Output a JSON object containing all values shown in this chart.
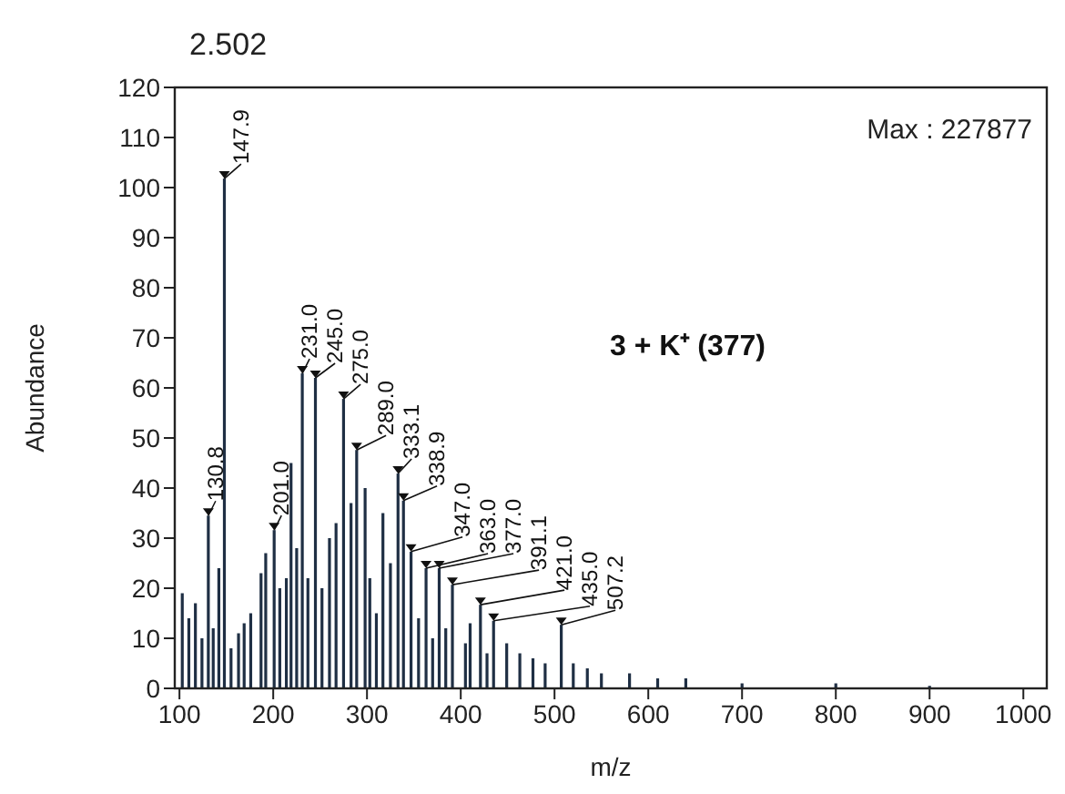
{
  "chart_data": {
    "type": "bar",
    "title": "2.502",
    "xlabel": "m/z",
    "ylabel": "Abundance",
    "annotations": [
      "Max : 227877",
      "3 + K⁺ (377)",
      {
        "text": "130.8",
        "x": 130.8,
        "y": 34.5
      },
      {
        "text": "147.9",
        "x": 147.9,
        "y": 101.8
      },
      {
        "text": "201.0",
        "x": 201.0,
        "y": 31.6
      },
      {
        "text": "231.0",
        "x": 231.0,
        "y": 62.9
      },
      {
        "text": "245.0",
        "x": 245.0,
        "y": 62
      },
      {
        "text": "275.0",
        "x": 275.0,
        "y": 57.8
      },
      {
        "text": "289.0",
        "x": 289.0,
        "y": 47.6
      },
      {
        "text": "333.1",
        "x": 333.1,
        "y": 42.9
      },
      {
        "text": "338.9",
        "x": 338.9,
        "y": 37.5
      },
      {
        "text": "347.0",
        "x": 347.0,
        "y": 27.3
      },
      {
        "text": "363.0",
        "x": 363.0,
        "y": 24
      },
      {
        "text": "377.0",
        "x": 377.0,
        "y": 24
      },
      {
        "text": "391.1",
        "x": 391.1,
        "y": 20.7
      },
      {
        "text": "421.0",
        "x": 421.0,
        "y": 16.7
      },
      {
        "text": "435.0",
        "x": 435.0,
        "y": 13.5
      },
      {
        "text": "507.2",
        "x": 507.2,
        "y": 12.7
      }
    ],
    "x": [
      103,
      110,
      117,
      124,
      130.8,
      136,
      142,
      147.9,
      155,
      163,
      169,
      176,
      187,
      192,
      201.0,
      207,
      214,
      219,
      225,
      231.0,
      237,
      245.0,
      252,
      260,
      267,
      275.0,
      283,
      289.0,
      298,
      303,
      310,
      317,
      325,
      333.1,
      338.9,
      347.0,
      355,
      363.0,
      370,
      377.0,
      384,
      391.1,
      405,
      410,
      421.0,
      428,
      435.0,
      449,
      463,
      477,
      490,
      507.2,
      520,
      535,
      550,
      580,
      610,
      640,
      700,
      800,
      900
    ],
    "values": [
      19,
      14,
      17,
      10,
      34.5,
      12,
      24,
      101.8,
      8,
      11,
      13,
      15,
      23,
      27,
      31.6,
      20,
      22,
      45,
      28,
      62.9,
      22,
      62,
      20,
      30,
      33,
      57.8,
      37,
      47.6,
      40,
      22,
      15,
      35,
      25,
      42.9,
      37.5,
      27.3,
      14,
      24,
      10,
      24,
      12,
      20.7,
      9,
      13,
      16.7,
      7,
      13.5,
      9,
      7,
      6,
      5,
      12.7,
      5,
      4,
      3,
      3,
      2,
      2,
      1,
      1,
      0.5
    ],
    "color": "#1f2f44",
    "xlim": [
      95,
      1025
    ],
    "xticks": [
      100,
      200,
      300,
      400,
      500,
      600,
      700,
      800,
      900,
      1000
    ],
    "ylim": [
      0,
      120
    ],
    "yticks": [
      0,
      10,
      20,
      30,
      40,
      50,
      60,
      70,
      80,
      90,
      100,
      110,
      120
    ],
    "grid": false
  }
}
